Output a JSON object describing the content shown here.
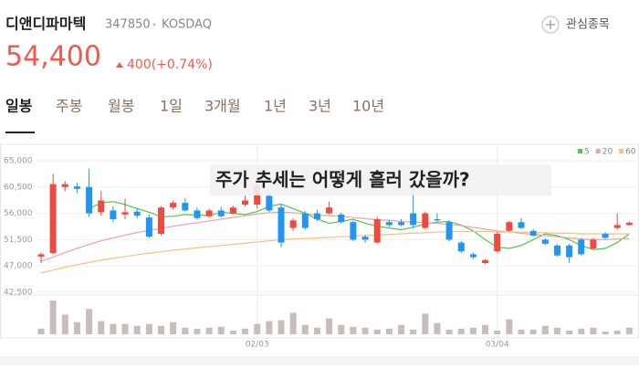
{
  "header": {
    "name": "디앤디파마텍",
    "code": "347850",
    "market": "KOSDAQ",
    "watchlist": "관심종목",
    "price": "54,400",
    "change": "400(+0.74%)"
  },
  "tabs": [
    "일봉",
    "주봉",
    "월봉",
    "1일",
    "3개월",
    "1년",
    "3년",
    "10년"
  ],
  "chart_data": {
    "type": "candlestick",
    "annotation": "주가 추세는 어떻게 흘러 갔을까?",
    "up_color": "#f0493e",
    "down_color": "#2196f0",
    "volume_color": "#c9bdb9",
    "categories": [
      null,
      null,
      null,
      null,
      null,
      null,
      null,
      null,
      null,
      null,
      null,
      null,
      null,
      null,
      null,
      null,
      null,
      null,
      "02/03",
      null,
      null,
      null,
      null,
      null,
      null,
      null,
      null,
      null,
      null,
      null,
      null,
      null,
      null,
      null,
      null,
      null,
      null,
      null,
      "03/04",
      null,
      null,
      null,
      null,
      null,
      null,
      null,
      null,
      null,
      null,
      null
    ],
    "open": [
      48600,
      49200,
      60500,
      60600,
      60500,
      56200,
      56500,
      55800,
      56300,
      55300,
      52500,
      57000,
      57800,
      56500,
      55500,
      56500,
      56000,
      57500,
      57500,
      59000,
      57000,
      53500,
      56000,
      56000,
      56000,
      55800,
      54500,
      52000,
      51000,
      54500,
      54500,
      56000,
      53500,
      55000,
      54500,
      51000,
      49000,
      47500,
      49500,
      53000,
      54500,
      53000,
      51500,
      50500,
      50500,
      51500,
      50000,
      52500,
      53500,
      54000
    ],
    "high": [
      49300,
      62800,
      61500,
      61200,
      63600,
      59800,
      57200,
      58500,
      56800,
      55800,
      57200,
      58200,
      58600,
      57000,
      56800,
      57100,
      57300,
      59000,
      61500,
      59600,
      57500,
      55200,
      56400,
      56600,
      58000,
      56100,
      54800,
      52300,
      55400,
      54900,
      55000,
      61500,
      56300,
      56000,
      54800,
      51300,
      49300,
      48200,
      52800,
      54700,
      55200,
      53300,
      51800,
      50700,
      50800,
      51800,
      51800,
      52800,
      56000,
      54600
    ],
    "low": [
      47500,
      49000,
      59800,
      59500,
      55400,
      55600,
      54500,
      55000,
      55200,
      51800,
      52200,
      56600,
      56300,
      54900,
      55200,
      55300,
      55800,
      57200,
      56800,
      56200,
      50200,
      53000,
      53200,
      54700,
      55800,
      54300,
      51200,
      51000,
      50800,
      53700,
      53800,
      53500,
      53300,
      54500,
      51200,
      49200,
      48200,
      47300,
      49300,
      52800,
      53300,
      52000,
      50600,
      48600,
      47500,
      48800,
      49800,
      51600,
      53200,
      53900
    ],
    "close": [
      49000,
      61000,
      61000,
      60200,
      56000,
      58200,
      55000,
      56200,
      55600,
      52000,
      57000,
      57800,
      56500,
      55200,
      56500,
      55500,
      57000,
      58200,
      60800,
      56500,
      51000,
      54800,
      53500,
      55000,
      57000,
      54500,
      51500,
      51500,
      55000,
      54000,
      54000,
      54000,
      56000,
      54800,
      51500,
      49500,
      48500,
      48000,
      52500,
      54500,
      53500,
      52200,
      50800,
      48800,
      48500,
      49000,
      51500,
      51800,
      54000,
      54400
    ],
    "volume": [
      6,
      36,
      21,
      13,
      27,
      14,
      11,
      11,
      9,
      11,
      9,
      13,
      7,
      6,
      7,
      8,
      4,
      6,
      11,
      14,
      15,
      23,
      10,
      7,
      17,
      10,
      8,
      7,
      5,
      6,
      10,
      5,
      22,
      12,
      5,
      6,
      7,
      10,
      4,
      16,
      5,
      5,
      9,
      7,
      4,
      6,
      7,
      3,
      4,
      7
    ],
    "series": [
      {
        "name": "5",
        "color": "#4cc94c",
        "values": [
          null,
          null,
          null,
          null,
          56800,
          57800,
          58000,
          57500,
          56800,
          56200,
          55400,
          55500,
          55800,
          55700,
          55600,
          56200,
          56000,
          55800,
          56300,
          57200,
          57600,
          56800,
          56000,
          55000,
          54300,
          54600,
          55000,
          54300,
          53800,
          53500,
          53200,
          53600,
          54200,
          54500,
          54600,
          54000,
          53000,
          51500,
          50200,
          50000,
          50500,
          51500,
          52500,
          52200,
          51500,
          50500,
          49800,
          50000,
          51000,
          52500
        ]
      },
      {
        "name": "20",
        "color": "#f2a0a0",
        "values": [
          47800,
          48500,
          49300,
          50000,
          50700,
          51300,
          51800,
          52300,
          52700,
          53100,
          53400,
          53800,
          54100,
          54400,
          54700,
          55000,
          55300,
          55600,
          55900,
          56100,
          56200,
          56100,
          55900,
          55700,
          55600,
          55500,
          55300,
          55100,
          54900,
          54800,
          54600,
          54500,
          54400,
          54300,
          54100,
          53900,
          53600,
          53300,
          53000,
          52800,
          52600,
          52400,
          52200,
          52000,
          51800,
          51600,
          51500,
          51500,
          51600,
          51700
        ]
      },
      {
        "name": "60",
        "color": "#f5c27a",
        "values": [
          45800,
          46300,
          46800,
          47200,
          47600,
          48000,
          48300,
          48600,
          48900,
          49200,
          49400,
          49700,
          49900,
          50100,
          50300,
          50500,
          50700,
          50900,
          51100,
          51300,
          51500,
          51600,
          51700,
          51800,
          51900,
          52000,
          52100,
          52200,
          52300,
          52400,
          52500,
          52600,
          52700,
          52800,
          52900,
          52900,
          52900,
          52900,
          52800,
          52800,
          52800,
          52700,
          52700,
          52600,
          52600,
          52500,
          52500,
          52500,
          52500,
          52500
        ]
      }
    ],
    "ylim": [
      42000,
      67500
    ],
    "yticks": [
      {
        "value": 65000,
        "label": "65,000"
      },
      {
        "value": 60500,
        "label": "60,500"
      },
      {
        "value": 56000,
        "label": "56,000"
      },
      {
        "value": 51500,
        "label": "51,500"
      },
      {
        "value": 47000,
        "label": "47,000"
      },
      {
        "value": 42500,
        "label": "42,500"
      }
    ],
    "grid": true
  }
}
